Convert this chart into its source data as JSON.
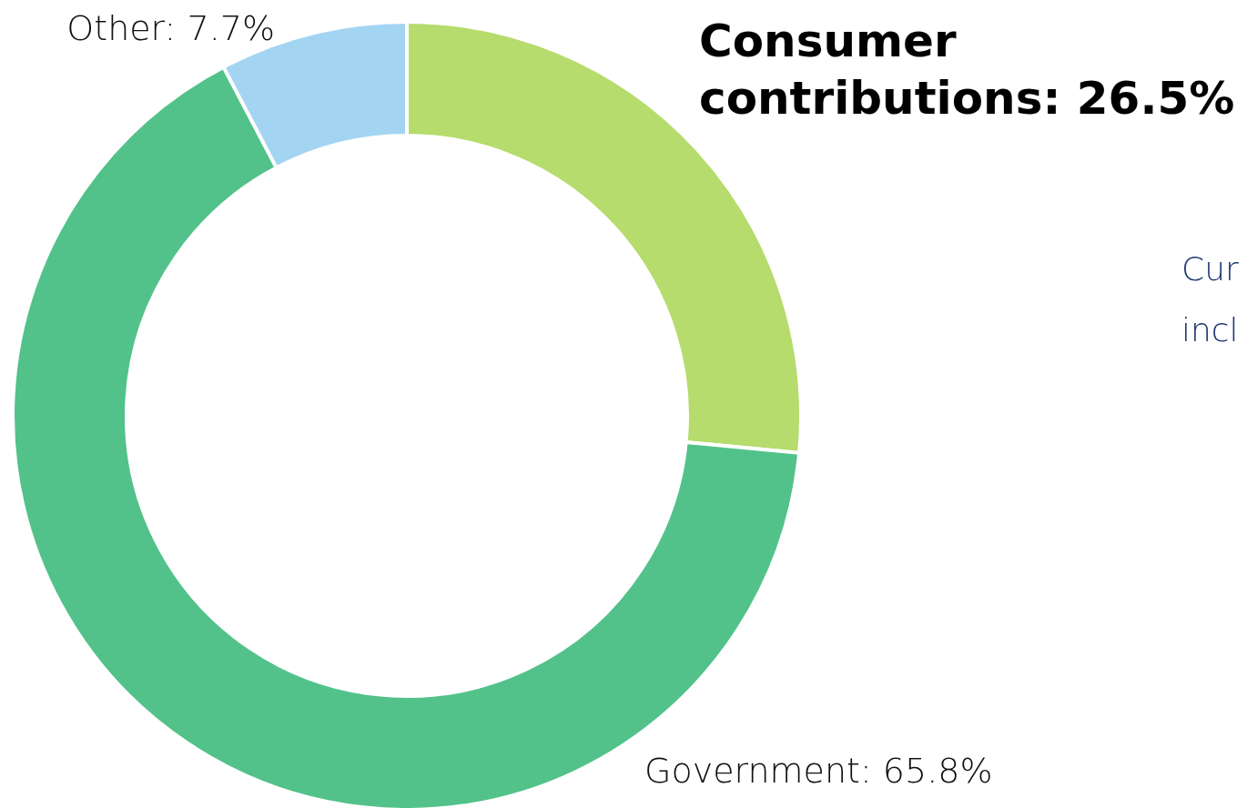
{
  "chart_data": {
    "type": "donut",
    "categories": [
      "Consumer contributions",
      "Government",
      "Other"
    ],
    "values": [
      26.5,
      65.8,
      7.7
    ],
    "value_labels": [
      "26.5%",
      "65.8%",
      "7.7%"
    ],
    "colors": [
      "#b5dc6c",
      "#52c28a",
      "#a3d5f3"
    ],
    "annotations": [
      "Cur",
      "incl"
    ]
  }
}
